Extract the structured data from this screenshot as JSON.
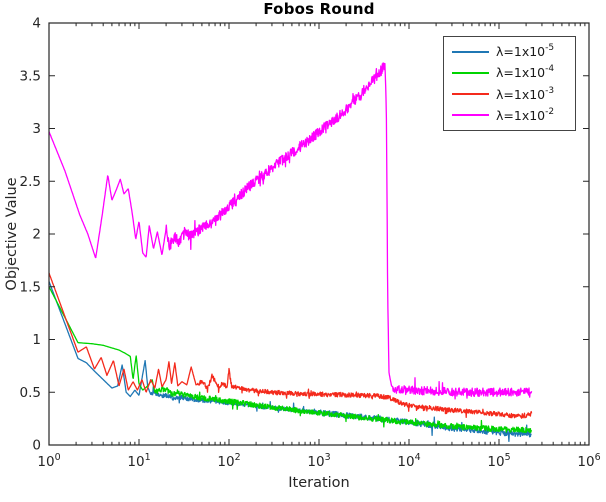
{
  "chart_data": {
    "type": "line",
    "title": "Fobos Round",
    "xlabel": "Iteration",
    "ylabel": "Objective Value",
    "x_scale": "log",
    "x_tick_exps": [
      0,
      1,
      2,
      3,
      4,
      5,
      6
    ],
    "xlim": [
      1,
      1000000
    ],
    "ylim": [
      0,
      4
    ],
    "y_ticks": [
      0,
      0.5,
      1,
      1.5,
      2,
      2.5,
      3,
      3.5,
      4
    ],
    "grid": false,
    "legend_position": "top-right",
    "axis_color": "#262626",
    "background_color": "#ffffff",
    "series": [
      {
        "name": "lambda-1e-5",
        "label_base": "λ=1x10",
        "label_exp": "-5",
        "color": "#1f77b4",
        "anchors": [
          [
            1,
            1.55
          ],
          [
            2.1,
            0.82
          ],
          [
            2.6,
            0.78
          ],
          [
            3.2,
            0.7
          ],
          [
            4,
            0.62
          ],
          [
            5,
            0.54
          ],
          [
            5.8,
            0.56
          ],
          [
            6.5,
            0.76
          ],
          [
            7.2,
            0.5
          ],
          [
            8,
            0.46
          ],
          [
            9,
            0.52
          ],
          [
            10,
            0.47
          ],
          [
            11.7,
            0.8
          ],
          [
            12.5,
            0.55
          ],
          [
            13.5,
            0.48
          ],
          [
            15,
            0.5
          ],
          [
            17,
            0.46
          ],
          [
            20,
            0.47
          ],
          [
            25,
            0.44
          ],
          [
            30,
            0.45
          ],
          [
            40,
            0.43
          ],
          [
            60,
            0.42
          ],
          [
            100,
            0.4
          ],
          [
            150,
            0.385
          ],
          [
            250,
            0.36
          ],
          [
            400,
            0.345
          ],
          [
            700,
            0.32
          ],
          [
            1200,
            0.3
          ],
          [
            2000,
            0.28
          ],
          [
            3500,
            0.26
          ],
          [
            6000,
            0.24
          ],
          [
            10000,
            0.22
          ],
          [
            18000,
            0.185
          ],
          [
            30000,
            0.16
          ],
          [
            60000,
            0.135
          ],
          [
            120000,
            0.115
          ],
          [
            230000,
            0.1
          ]
        ],
        "noise": [
          [
            13.5,
            1000,
            0.02
          ],
          [
            1000,
            230000,
            0.028
          ]
        ],
        "spike_chance": 0.03,
        "spike_scale": 2.5
      },
      {
        "name": "lambda-1e-4",
        "label_base": "λ=1x10",
        "label_exp": "-4",
        "color": "#00d400",
        "anchors": [
          [
            1,
            1.5
          ],
          [
            2.1,
            0.97
          ],
          [
            3,
            0.96
          ],
          [
            4,
            0.945
          ],
          [
            5,
            0.92
          ],
          [
            6,
            0.9
          ],
          [
            7,
            0.87
          ],
          [
            8,
            0.84
          ],
          [
            8.6,
            0.62
          ],
          [
            9.3,
            0.85
          ],
          [
            10,
            0.58
          ],
          [
            11,
            0.52
          ],
          [
            12.5,
            0.56
          ],
          [
            14,
            0.62
          ],
          [
            15,
            0.5
          ],
          [
            17,
            0.52
          ],
          [
            20,
            0.53
          ],
          [
            23,
            0.48
          ],
          [
            27,
            0.5
          ],
          [
            33,
            0.47
          ],
          [
            42,
            0.455
          ],
          [
            60,
            0.44
          ],
          [
            100,
            0.415
          ],
          [
            160,
            0.39
          ],
          [
            280,
            0.36
          ],
          [
            500,
            0.335
          ],
          [
            900,
            0.31
          ],
          [
            1600,
            0.285
          ],
          [
            3000,
            0.26
          ],
          [
            6000,
            0.235
          ],
          [
            10000,
            0.215
          ],
          [
            20000,
            0.19
          ],
          [
            40000,
            0.17
          ],
          [
            80000,
            0.155
          ],
          [
            150000,
            0.145
          ],
          [
            230000,
            0.14
          ]
        ],
        "noise": [
          [
            15,
            230000,
            0.025
          ]
        ],
        "spike_chance": 0.035,
        "spike_scale": 2.4
      },
      {
        "name": "lambda-1e-3",
        "label_base": "λ=1x10",
        "label_exp": "-3",
        "color": "#f42a1c",
        "anchors": [
          [
            1,
            1.63
          ],
          [
            2.1,
            0.88
          ],
          [
            2.6,
            0.93
          ],
          [
            3.2,
            0.72
          ],
          [
            3.8,
            0.83
          ],
          [
            4.4,
            0.66
          ],
          [
            5.2,
            0.8
          ],
          [
            6,
            0.56
          ],
          [
            6.8,
            0.72
          ],
          [
            7.6,
            0.52
          ],
          [
            8.6,
            0.6
          ],
          [
            9.6,
            0.52
          ],
          [
            10.8,
            0.62
          ],
          [
            12,
            0.5
          ],
          [
            13.5,
            0.62
          ],
          [
            15,
            0.54
          ],
          [
            16.5,
            0.72
          ],
          [
            18,
            0.55
          ],
          [
            20,
            0.62
          ],
          [
            21.5,
            0.79
          ],
          [
            23,
            0.58
          ],
          [
            25,
            0.78
          ],
          [
            27,
            0.56
          ],
          [
            30,
            0.6
          ],
          [
            34,
            0.57
          ],
          [
            38,
            0.74
          ],
          [
            43,
            0.57
          ],
          [
            50,
            0.6
          ],
          [
            58,
            0.54
          ],
          [
            65,
            0.66
          ],
          [
            75,
            0.55
          ],
          [
            85,
            0.58
          ],
          [
            95,
            0.55
          ],
          [
            100,
            0.71
          ],
          [
            107,
            0.56
          ],
          [
            120,
            0.55
          ],
          [
            140,
            0.54
          ],
          [
            170,
            0.52
          ],
          [
            220,
            0.51
          ],
          [
            300,
            0.5
          ],
          [
            450,
            0.49
          ],
          [
            700,
            0.485
          ],
          [
            1100,
            0.48
          ],
          [
            1800,
            0.475
          ],
          [
            3000,
            0.47
          ],
          [
            4500,
            0.465
          ],
          [
            6000,
            0.45
          ],
          [
            7500,
            0.41
          ],
          [
            9000,
            0.385
          ],
          [
            12000,
            0.365
          ],
          [
            18000,
            0.35
          ],
          [
            30000,
            0.33
          ],
          [
            50000,
            0.315
          ],
          [
            80000,
            0.3
          ],
          [
            120000,
            0.285
          ],
          [
            170000,
            0.27
          ],
          [
            210000,
            0.285
          ],
          [
            230000,
            0.3
          ]
        ],
        "noise": [
          [
            45,
            230000,
            0.021
          ]
        ],
        "spike_chance": 0.04,
        "spike_scale": 2.2
      },
      {
        "name": "lambda-1e-2",
        "label_base": "λ=1x10",
        "label_exp": "-2",
        "color": "#ff00ff",
        "anchors": [
          [
            1,
            2.97
          ],
          [
            1.5,
            2.6
          ],
          [
            2.2,
            2.18
          ],
          [
            2.7,
            2.0
          ],
          [
            3.3,
            1.77
          ],
          [
            3.9,
            2.18
          ],
          [
            4.5,
            2.56
          ],
          [
            5,
            2.32
          ],
          [
            5.6,
            2.42
          ],
          [
            6.2,
            2.52
          ],
          [
            6.8,
            2.38
          ],
          [
            7.6,
            2.43
          ],
          [
            8.4,
            2.2
          ],
          [
            9.2,
            1.95
          ],
          [
            10,
            2.12
          ],
          [
            11,
            1.82
          ],
          [
            12,
            1.78
          ],
          [
            13,
            2.08
          ],
          [
            14.5,
            1.86
          ],
          [
            16,
            2.02
          ],
          [
            18,
            1.8
          ],
          [
            20,
            2.05
          ],
          [
            22,
            1.88
          ],
          [
            25,
            1.98
          ],
          [
            28,
            1.92
          ],
          [
            32,
            2.0
          ],
          [
            38,
            1.98
          ],
          [
            45,
            2.03
          ],
          [
            55,
            2.07
          ],
          [
            70,
            2.13
          ],
          [
            90,
            2.22
          ],
          [
            120,
            2.32
          ],
          [
            160,
            2.44
          ],
          [
            220,
            2.53
          ],
          [
            300,
            2.62
          ],
          [
            420,
            2.72
          ],
          [
            600,
            2.82
          ],
          [
            850,
            2.92
          ],
          [
            1200,
            3.02
          ],
          [
            1700,
            3.12
          ],
          [
            2400,
            3.25
          ],
          [
            3300,
            3.38
          ],
          [
            4300,
            3.48
          ],
          [
            5000,
            3.56
          ],
          [
            5400,
            3.62
          ],
          [
            5600,
            3.2
          ],
          [
            5800,
            1.4
          ],
          [
            6000,
            0.68
          ],
          [
            6400,
            0.56
          ],
          [
            7200,
            0.53
          ],
          [
            10000,
            0.52
          ],
          [
            20000,
            0.51
          ],
          [
            50000,
            0.5
          ],
          [
            120000,
            0.5
          ],
          [
            230000,
            0.51
          ]
        ],
        "noise": [
          [
            20,
            5350,
            0.05
          ],
          [
            6600,
            230000,
            0.04
          ]
        ],
        "spike_chance": 0.05,
        "spike_scale": 2.2
      }
    ]
  }
}
